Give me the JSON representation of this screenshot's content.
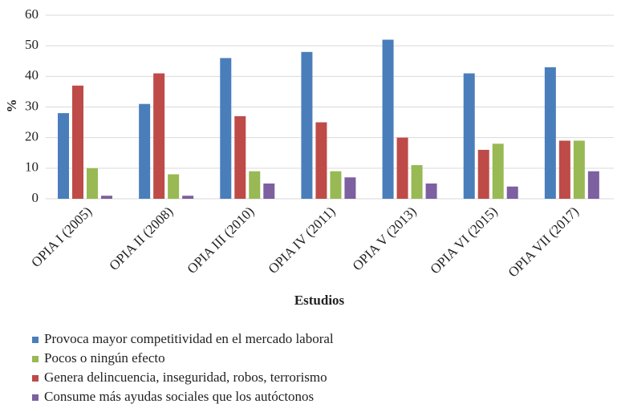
{
  "chart_data": {
    "type": "bar",
    "y_label": "%",
    "x_label": "Estudios",
    "categories": [
      "OPIA I (2005)",
      "OPIA II (2008)",
      "OPIA III (2010)",
      "OPIA IV (2011)",
      "OPIA V (2013)",
      "OPIA VI (2015)",
      "OPIA VII (2017)"
    ],
    "series": [
      {
        "name": "Provoca mayor competitividad en el mercado laboral",
        "color": "#4a7ebb",
        "values": [
          28,
          31,
          46,
          48,
          52,
          41,
          43
        ]
      },
      {
        "name": "Pocos o ningún efecto",
        "color": "#98b954",
        "values": [
          10,
          8,
          9,
          9,
          11,
          18,
          19
        ]
      },
      {
        "name": "Genera delincuencia, inseguridad, robos, terrorismo",
        "color": "#be4b48",
        "values": [
          37,
          41,
          27,
          25,
          20,
          16,
          19
        ]
      },
      {
        "name": "Consume más ayudas sociales que los autóctonos",
        "color": "#7d60a0",
        "values": [
          1,
          1,
          5,
          7,
          5,
          4,
          9
        ]
      }
    ],
    "ylim": [
      0,
      60
    ],
    "yticks": [
      0,
      10,
      20,
      30,
      40,
      50,
      60
    ],
    "grid": true,
    "legend": "bottom"
  }
}
